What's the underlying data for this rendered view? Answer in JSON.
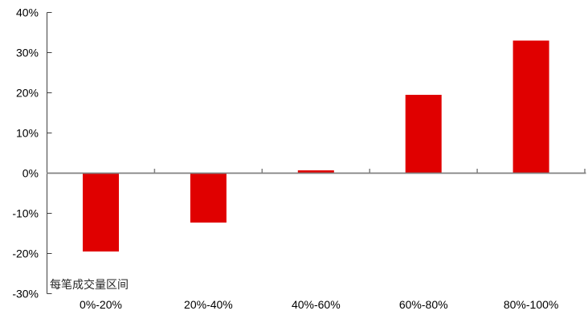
{
  "chart_data": {
    "type": "bar",
    "title": "",
    "categories": [
      "0%-20%",
      "20%-40%",
      "40%-60%",
      "60%-80%",
      "80%-100%"
    ],
    "values": [
      -19.5,
      -12.3,
      0.7,
      19.5,
      33
    ],
    "xlabel": "每笔成交量区间",
    "ylabel": "",
    "ylim": [
      -30,
      40
    ],
    "grid": false,
    "legend": null,
    "y_axis": {
      "ticks": [
        {
          "value": 40,
          "label": "40%"
        },
        {
          "value": 30,
          "label": "30%"
        },
        {
          "value": 20,
          "label": "20%"
        },
        {
          "value": 10,
          "label": "10%"
        },
        {
          "value": 0,
          "label": "0%"
        },
        {
          "value": -10,
          "label": "-10%"
        },
        {
          "value": -20,
          "label": "-20%"
        },
        {
          "value": -30,
          "label": "-30%"
        }
      ]
    },
    "colors": {
      "bar": "#e00000",
      "y_axis_line": "#404040",
      "zero_line": "#808080",
      "tick_label": "#000000",
      "caption_text": "#262626",
      "background": "#ffffff"
    }
  }
}
